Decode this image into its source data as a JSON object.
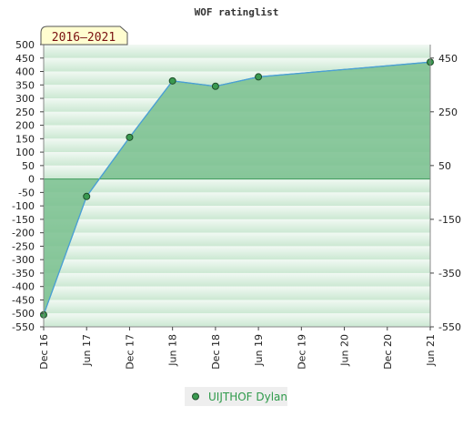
{
  "chart_data": {
    "type": "area",
    "title": "WOF ratinglist",
    "period_badge": "2016–2021",
    "x_categories": [
      "Dec 16",
      "Jun 17",
      "Dec 17",
      "Jun 18",
      "Dec 18",
      "Jun 19",
      "Dec 19",
      "Jun 20",
      "Dec 20",
      "Jun 21"
    ],
    "ylim": [
      -550,
      500
    ],
    "left_ticks": [
      500,
      450,
      400,
      350,
      300,
      250,
      200,
      150,
      100,
      50,
      0,
      -50,
      -100,
      -150,
      -200,
      -250,
      -300,
      -350,
      -400,
      -450,
      -500,
      -550
    ],
    "right_ticks": [
      450,
      250,
      50,
      -150,
      -350,
      -550
    ],
    "grid": "banded",
    "legend_position": "bottom",
    "series": [
      {
        "name": "UIJTHOF Dylan",
        "x": [
          "Dec 16",
          "Jun 17",
          "Dec 17",
          "Jun 18",
          "Dec 18",
          "Jun 19",
          "Jun 21"
        ],
        "values": [
          -505,
          -65,
          155,
          365,
          345,
          380,
          435
        ]
      }
    ],
    "colors": {
      "fill": "#79c08e",
      "line": "#4a9fd8",
      "marker": "#3a9a50",
      "band_dark": "#cbe8d2",
      "band_light": "#f1f9f3",
      "badge_bg": "#fffdd0",
      "legend_bg": "#eeeeee"
    }
  }
}
